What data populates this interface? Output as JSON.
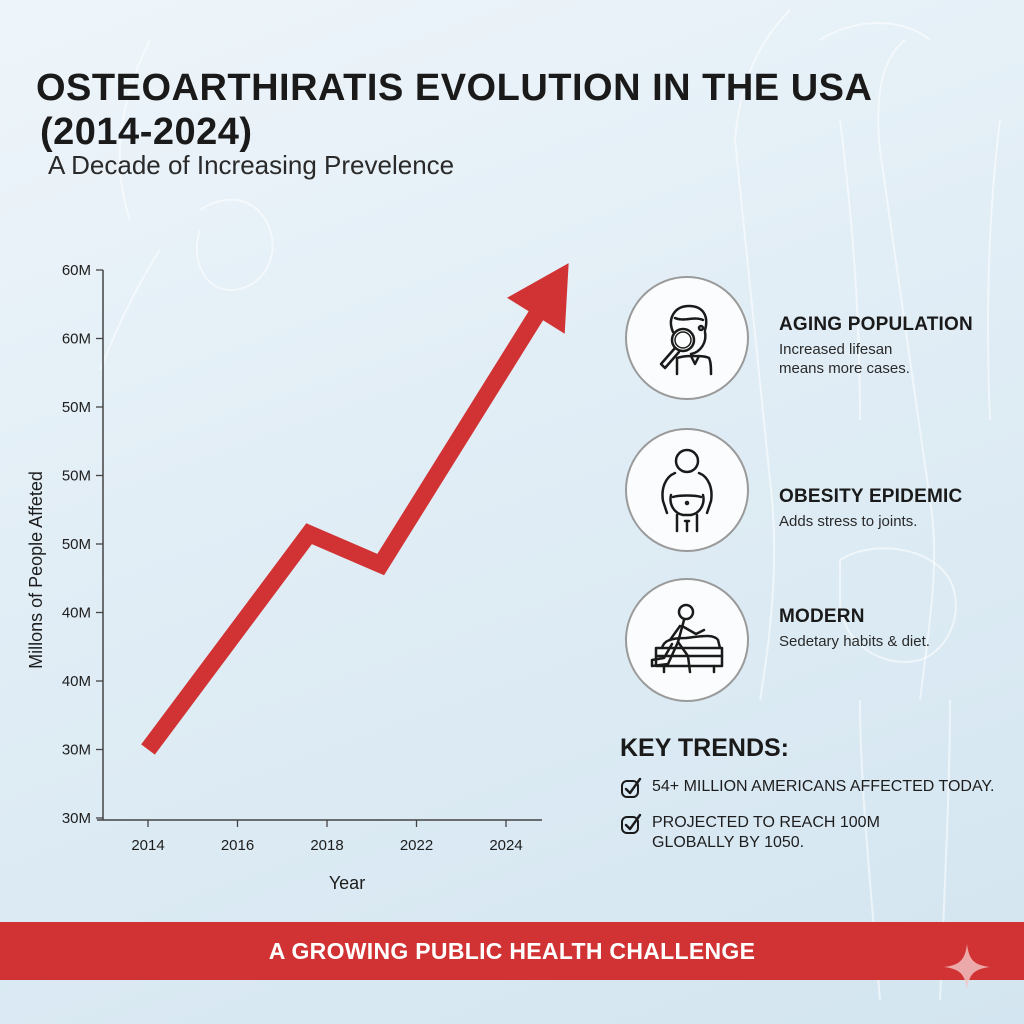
{
  "header": {
    "title_line1": "OSTEOARTHIRATIS EVOLUTION IN THE USA",
    "title_line2": "(2014-2024)",
    "subtitle": "A Decade of Increasing Prevelence"
  },
  "chart_data": {
    "type": "line",
    "title": "OSTEOARTHIRATIS EVOLUTION IN THE USA (2014-2024)",
    "subtitle": "A Decade of Increasing Prevelence",
    "xlabel": "Year",
    "ylabel": "Millons of People Affeted",
    "x_ticks": [
      "2014",
      "2016",
      "2018",
      "2022",
      "2024"
    ],
    "y_ticks": [
      "30M",
      "30M",
      "40M",
      "40M",
      "50M",
      "50M",
      "50M",
      "60M",
      "60M"
    ],
    "ylim_tick_index": [
      0,
      8
    ],
    "grid": false,
    "legend": "none",
    "series": [
      {
        "name": "Millions of People Affected",
        "color": "#d13334",
        "style": "arrow",
        "points": [
          {
            "x_tick_index": 0.0,
            "y_tick_index": 1.0
          },
          {
            "x_tick_index": 1.8,
            "y_tick_index": 4.15
          },
          {
            "x_tick_index": 2.6,
            "y_tick_index": 3.7
          },
          {
            "x_tick_index": 4.7,
            "y_tick_index": 8.1
          }
        ]
      }
    ]
  },
  "factors": [
    {
      "icon": "magnifier-person-icon",
      "title": "AGING POPULATION",
      "desc_line1": "Increased lifesan",
      "desc_line2": "means more cases."
    },
    {
      "icon": "obese-person-icon",
      "title": "OBESITY EPIDEMIC",
      "desc_line1": "Adds stress to joints.",
      "desc_line2": ""
    },
    {
      "icon": "person-on-couch-icon",
      "title": "MODERN",
      "desc_line1": "Sedetary habits & diet.",
      "desc_line2": ""
    }
  ],
  "key_trends": {
    "heading": "KEY TRENDS:",
    "items": [
      {
        "line1": "54+ MILLION AMERICANS AFFECTED TODAY.",
        "line2": ""
      },
      {
        "line1": "PROJECTED TO REACH 100M",
        "line2": "GLOBALLY BY 1050."
      }
    ]
  },
  "banner": {
    "text": "A GROWING PUBLIC HEALTH CHALLENGE"
  },
  "colors": {
    "accent_red": "#d13334",
    "text_dark": "#1a1a1a",
    "background": "#e2eef6"
  }
}
